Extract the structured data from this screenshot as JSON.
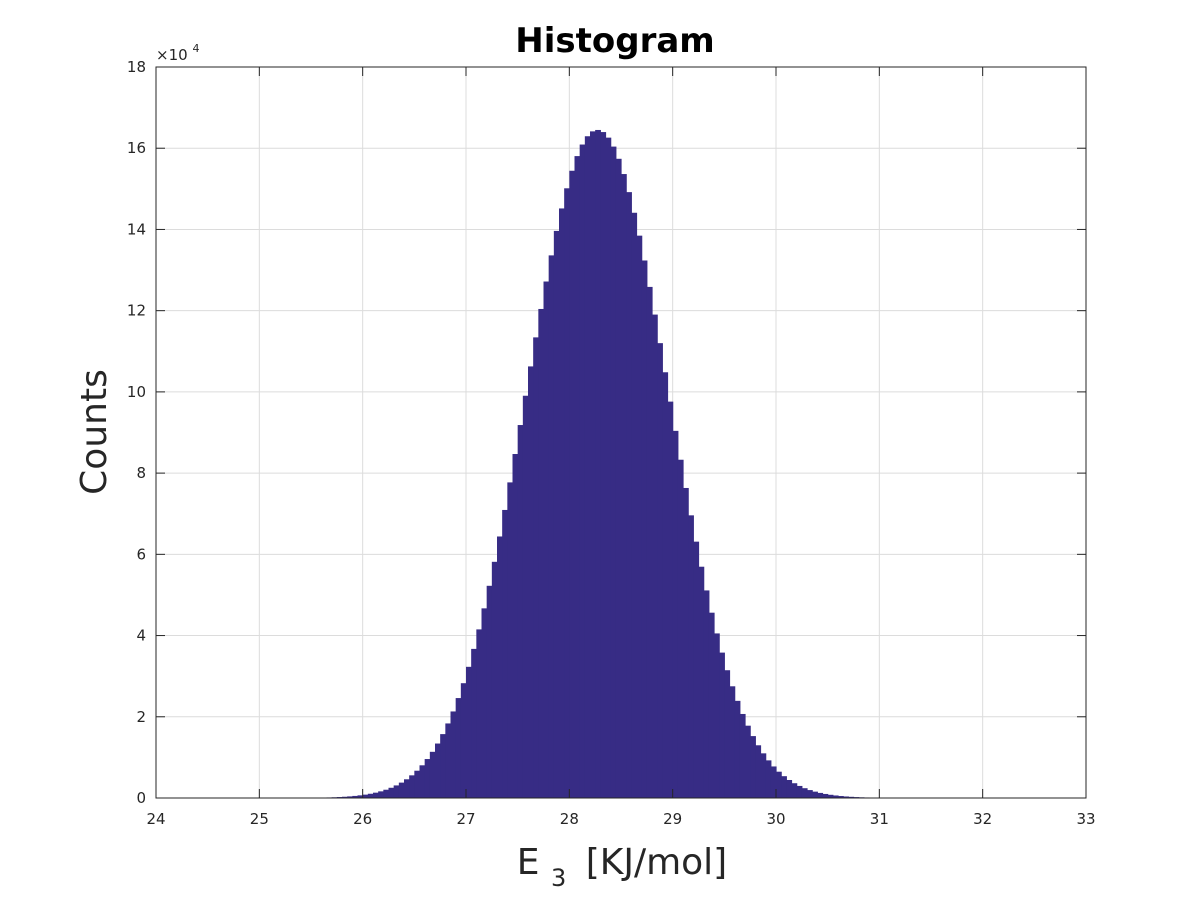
{
  "chart_data": {
    "type": "bar",
    "title": "Histogram",
    "xlabel": {
      "main": "E",
      "subscript": "3",
      "unit": "[KJ/mol]"
    },
    "ylabel": "Counts",
    "xlim": [
      24,
      33
    ],
    "ylim": [
      0,
      180000
    ],
    "x_ticks": [
      "24",
      "25",
      "26",
      "27",
      "28",
      "29",
      "30",
      "31",
      "32",
      "33"
    ],
    "y_ticks": [
      "0",
      "2",
      "4",
      "6",
      "8",
      "10",
      "12",
      "14",
      "16",
      "18"
    ],
    "y_exponent": {
      "base": "×10",
      "power": "4"
    },
    "grid": true,
    "bar_color": "#372c85",
    "distribution": {
      "shape": "approximately normal",
      "peak_x": 28.27,
      "peak_count": 164500,
      "std_dev": 0.69,
      "x_start": 24.3,
      "x_end": 32.7,
      "bin_width": 0.05
    }
  }
}
